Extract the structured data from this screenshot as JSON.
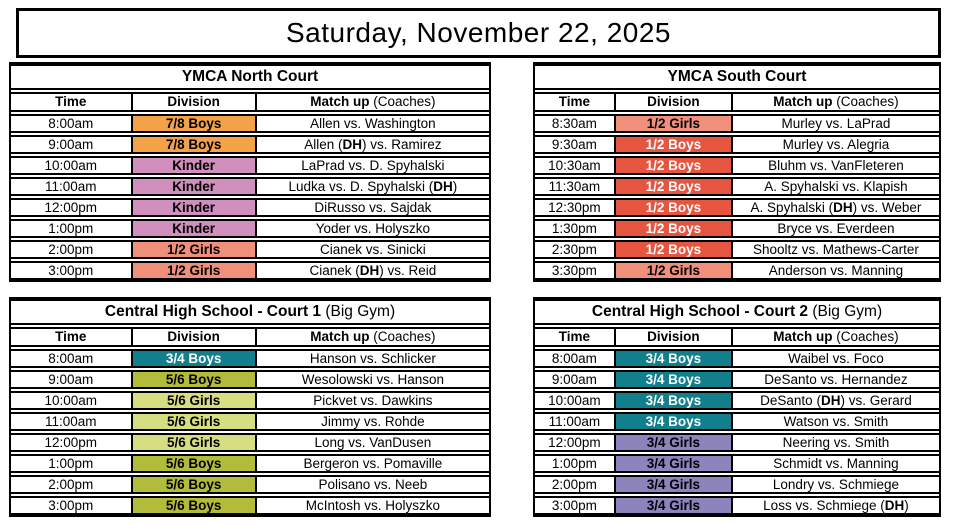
{
  "page_title": "Saturday, November 22, 2025",
  "columns": {
    "time": "Time",
    "division": "Division",
    "matchup_bold": "Match up",
    "matchup_light": " (Coaches)"
  },
  "division_colors": {
    "7/8 Boys": {
      "bg": "#F4A247",
      "text": "#000000"
    },
    "Kinder": {
      "bg": "#D18FBD",
      "text": "#000000"
    },
    "1/2 Girls": {
      "bg": "#F0907B",
      "text": "#000000"
    },
    "1/2 Boys": {
      "bg": "#E6553F",
      "text": "#FFFFFF"
    },
    "3/4 Boys": {
      "bg": "#12808C",
      "text": "#FFFFFF"
    },
    "5/6 Boys": {
      "bg": "#B3BB3B",
      "text": "#000000"
    },
    "5/6 Girls": {
      "bg": "#D6DE81",
      "text": "#000000"
    },
    "3/4 Girls": {
      "bg": "#8D83BD",
      "text": "#000000"
    }
  },
  "tables": [
    {
      "title_bold": "YMCA North Court",
      "title_light": "",
      "rows": [
        {
          "time": "8:00am",
          "division": "7/8 Boys",
          "matchup": "Allen vs. Washington"
        },
        {
          "time": "9:00am",
          "division": "7/8 Boys",
          "matchup": "Allen (DH) vs. Ramirez"
        },
        {
          "time": "10:00am",
          "division": "Kinder",
          "matchup": "LaPrad vs. D. Spyhalski"
        },
        {
          "time": "11:00am",
          "division": "Kinder",
          "matchup": "Ludka vs. D. Spyhalski (DH)"
        },
        {
          "time": "12:00pm",
          "division": "Kinder",
          "matchup": "DiRusso vs. Sajdak"
        },
        {
          "time": "1:00pm",
          "division": "Kinder",
          "matchup": "Yoder vs. Holyszko"
        },
        {
          "time": "2:00pm",
          "division": "1/2 Girls",
          "matchup": "Cianek vs. Sinicki"
        },
        {
          "time": "3:00pm",
          "division": "1/2 Girls",
          "matchup": "Cianek (DH) vs. Reid"
        }
      ]
    },
    {
      "title_bold": "YMCA South Court",
      "title_light": "",
      "rows": [
        {
          "time": "8:30am",
          "division": "1/2 Girls",
          "matchup": "Murley vs. LaPrad"
        },
        {
          "time": "9:30am",
          "division": "1/2 Boys",
          "matchup": "Murley vs. Alegria"
        },
        {
          "time": "10:30am",
          "division": "1/2 Boys",
          "matchup": "Bluhm vs. VanFleteren"
        },
        {
          "time": "11:30am",
          "division": "1/2 Boys",
          "matchup": "A. Spyhalski vs. Klapish"
        },
        {
          "time": "12:30pm",
          "division": "1/2 Boys",
          "matchup": "A. Spyhalski (DH) vs. Weber"
        },
        {
          "time": "1:30pm",
          "division": "1/2 Boys",
          "matchup": "Bryce vs. Everdeen"
        },
        {
          "time": "2:30pm",
          "division": "1/2 Boys",
          "matchup": "Shooltz vs. Mathews-Carter"
        },
        {
          "time": "3:30pm",
          "division": "1/2 Girls",
          "matchup": "Anderson vs. Manning"
        }
      ]
    },
    {
      "title_bold": "Central High School - Court 1",
      "title_light": " (Big Gym)",
      "rows": [
        {
          "time": "8:00am",
          "division": "3/4 Boys",
          "matchup": "Hanson vs. Schlicker"
        },
        {
          "time": "9:00am",
          "division": "5/6 Boys",
          "matchup": "Wesolowski vs. Hanson"
        },
        {
          "time": "10:00am",
          "division": "5/6 Girls",
          "matchup": "Pickvet vs. Dawkins"
        },
        {
          "time": "11:00am",
          "division": "5/6 Girls",
          "matchup": "Jimmy vs. Rohde"
        },
        {
          "time": "12:00pm",
          "division": "5/6 Girls",
          "matchup": "Long vs. VanDusen"
        },
        {
          "time": "1:00pm",
          "division": "5/6 Boys",
          "matchup": "Bergeron vs. Pomaville"
        },
        {
          "time": "2:00pm",
          "division": "5/6 Boys",
          "matchup": "Polisano vs. Neeb"
        },
        {
          "time": "3:00pm",
          "division": "5/6 Boys",
          "matchup": "McIntosh vs. Holyszko"
        }
      ]
    },
    {
      "title_bold": "Central High School - Court 2",
      "title_light": " (Big Gym)",
      "rows": [
        {
          "time": "8:00am",
          "division": "3/4 Boys",
          "matchup": "Waibel vs. Foco"
        },
        {
          "time": "9:00am",
          "division": "3/4 Boys",
          "matchup": "DeSanto vs. Hernandez"
        },
        {
          "time": "10:00am",
          "division": "3/4 Boys",
          "matchup": "DeSanto (DH) vs. Gerard"
        },
        {
          "time": "11:00am",
          "division": "3/4 Boys",
          "matchup": "Watson vs. Smith"
        },
        {
          "time": "12:00pm",
          "division": "3/4 Girls",
          "matchup": "Neering vs. Smith"
        },
        {
          "time": "1:00pm",
          "division": "3/4 Girls",
          "matchup": "Schmidt vs. Manning"
        },
        {
          "time": "2:00pm",
          "division": "3/4 Girls",
          "matchup": "Londry vs. Schmiege"
        },
        {
          "time": "3:00pm",
          "division": "3/4 Girls",
          "matchup": "Loss vs. Schmiege (DH)"
        }
      ]
    }
  ]
}
